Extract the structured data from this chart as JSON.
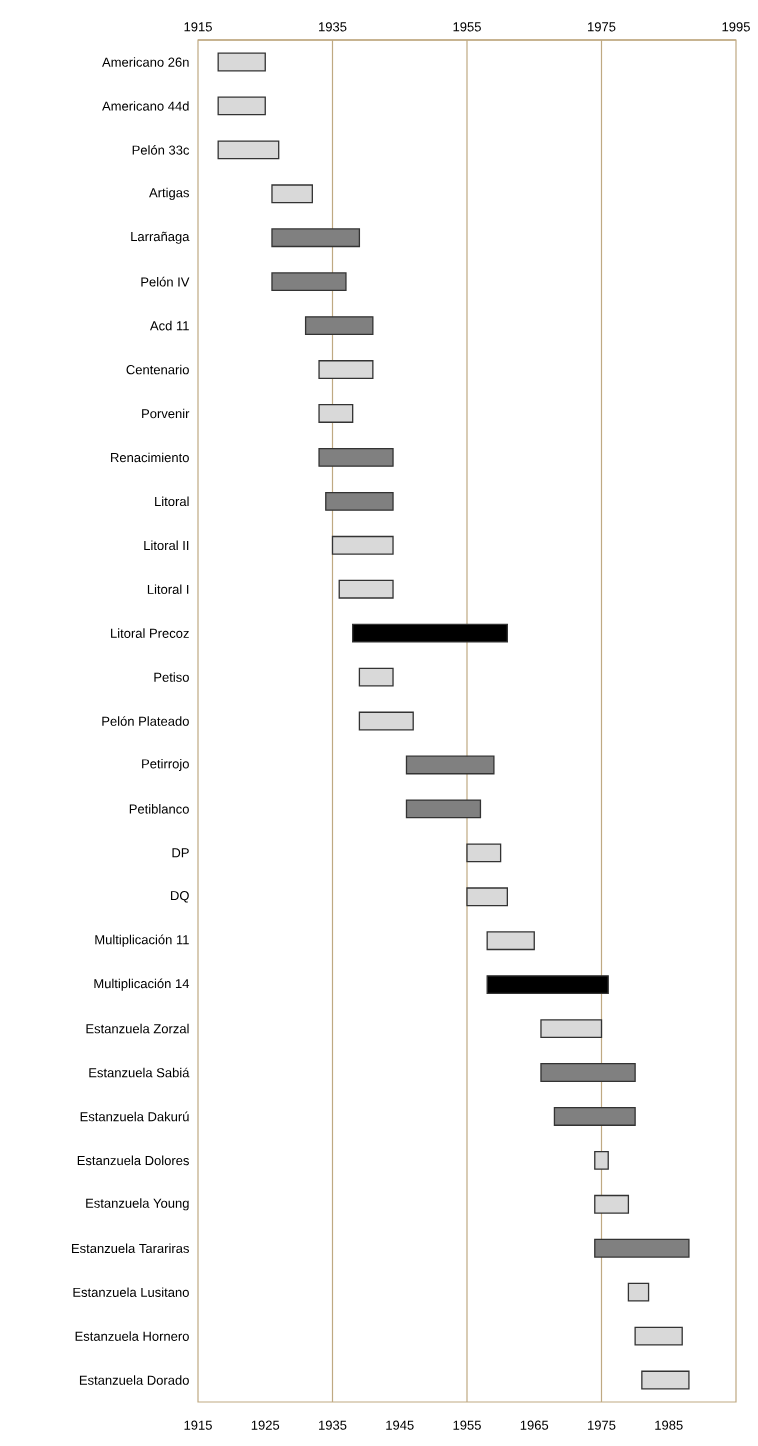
{
  "chart_data": {
    "type": "bar",
    "orientation": "horizontal",
    "categories": [
      "Americano 26n",
      "Americano 44d",
      "Pelón 33c",
      "Artigas",
      "Larrañaga",
      "Pelón IV",
      "Acd 11",
      "Centenario",
      "Porvenir",
      "Renacimiento",
      "Litoral",
      "Litoral II",
      "Litoral I",
      "Litoral Precoz",
      "Petiso",
      "Pelón Plateado",
      "Petirrojo",
      "Petiblanco",
      "DP",
      "DQ",
      "Multiplicación 11",
      "Multiplicación 14",
      "Estanzuela Zorzal",
      "Estanzuela Sabiá",
      "Estanzuela Dakurú",
      "Estanzuela Dolores",
      "Estanzuela Young",
      "Estanzuela Tarariras",
      "Estanzuela Lusitano",
      "Estanzuela Hornero",
      "Estanzuela Dorado"
    ],
    "base": [
      1918,
      1918,
      1918,
      1926,
      1926,
      1926,
      1931,
      1933,
      1933,
      1933,
      1934,
      1935,
      1936,
      1938,
      1939,
      1939,
      1946,
      1946,
      1955,
      1955,
      1958,
      1958,
      1966,
      1966,
      1968,
      1974,
      1974,
      1974,
      1979,
      1980,
      1981
    ],
    "values": [
      7,
      7,
      9,
      6,
      13,
      11,
      10,
      8,
      5,
      11,
      10,
      9,
      8,
      23,
      5,
      8,
      13,
      11,
      5,
      6,
      7,
      18,
      9,
      14,
      12,
      2,
      5,
      14,
      3,
      7,
      7
    ],
    "colors": [
      "#d9d9d9",
      "#d9d9d9",
      "#d9d9d9",
      "#d9d9d9",
      "#808080",
      "#808080",
      "#808080",
      "#d9d9d9",
      "#d9d9d9",
      "#808080",
      "#808080",
      "#d9d9d9",
      "#d9d9d9",
      "#000000",
      "#d9d9d9",
      "#d9d9d9",
      "#808080",
      "#808080",
      "#d9d9d9",
      "#d9d9d9",
      "#d9d9d9",
      "#000000",
      "#d9d9d9",
      "#808080",
      "#808080",
      "#d9d9d9",
      "#d9d9d9",
      "#808080",
      "#d9d9d9",
      "#d9d9d9",
      "#d9d9d9"
    ],
    "xlim": [
      1915,
      1995
    ],
    "xticks": [
      1915,
      1925,
      1935,
      1945,
      1955,
      1965,
      1975,
      1985
    ],
    "x2lim": [
      1915,
      1995
    ],
    "x2ticks": [
      1915,
      1935,
      1955,
      1975,
      1995
    ],
    "ref_lines": [
      {
        "axis": "x",
        "value": 1935,
        "color": "#bfa982"
      },
      {
        "axis": "x",
        "value": 1955,
        "color": "#bfa982"
      },
      {
        "axis": "x",
        "value": 1975,
        "color": "#bfa982"
      }
    ]
  }
}
